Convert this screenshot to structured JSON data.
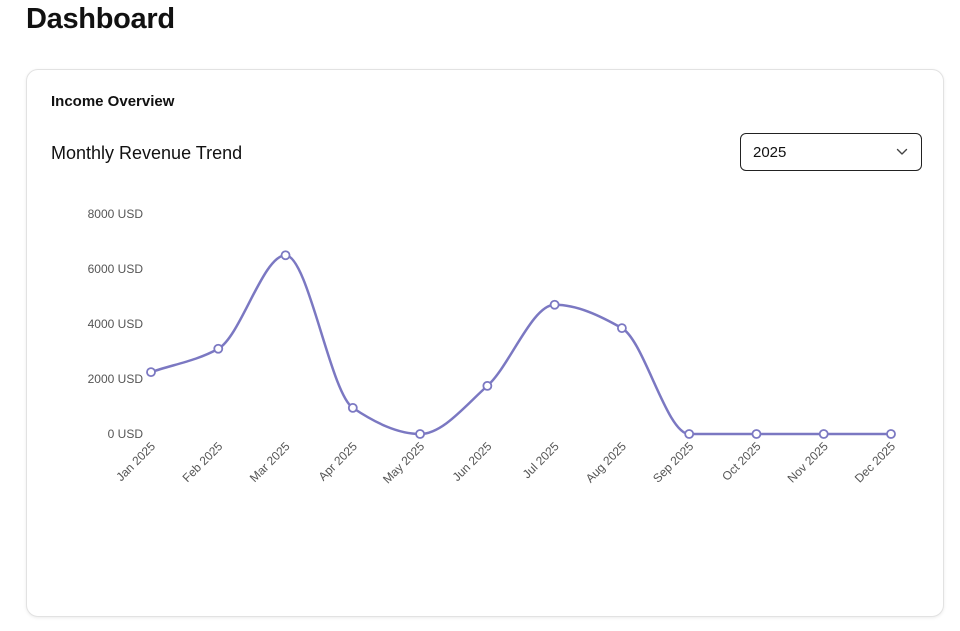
{
  "page": {
    "title": "Dashboard"
  },
  "card": {
    "heading": "Income Overview"
  },
  "filter": {
    "selected_year": "2025",
    "icon": "chevron-down-icon"
  },
  "colors": {
    "line": "#7b78c2",
    "marker_fill": "#ffffff"
  },
  "chart_data": {
    "type": "line",
    "title": "Monthly Revenue Trend",
    "xlabel": "",
    "ylabel": "",
    "ylim": [
      0,
      8000
    ],
    "yticks": [
      0,
      2000,
      4000,
      6000,
      8000
    ],
    "y_unit": "USD",
    "grid": false,
    "legend": "none",
    "smooth": true,
    "categories": [
      "Jan 2025",
      "Feb 2025",
      "Mar 2025",
      "Apr 2025",
      "May 2025",
      "Jun 2025",
      "Jul 2025",
      "Aug 2025",
      "Sep 2025",
      "Oct 2025",
      "Nov 2025",
      "Dec 2025"
    ],
    "series": [
      {
        "values": [
          2250,
          3100,
          6500,
          950,
          0,
          1750,
          4700,
          3850,
          0,
          0,
          0,
          0
        ]
      }
    ]
  }
}
